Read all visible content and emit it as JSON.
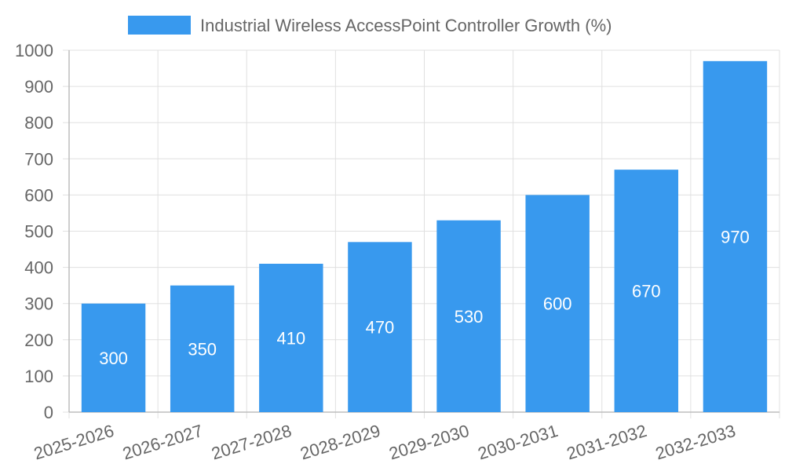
{
  "chart_data": {
    "type": "bar",
    "categories": [
      "2025-2026",
      "2026-2027",
      "2027-2028",
      "2028-2029",
      "2029-2030",
      "2030-2031",
      "2031-2032",
      "2032-2033"
    ],
    "series": [
      {
        "name": "Industrial Wireless AccessPoint Controller Growth (%)",
        "values": [
          300,
          350,
          410,
          470,
          530,
          600,
          670,
          970
        ],
        "color": "#3899ee"
      }
    ],
    "ylim": [
      0,
      1000
    ],
    "yticks": [
      0,
      100,
      200,
      300,
      400,
      500,
      600,
      700,
      800,
      900,
      1000
    ],
    "grid": true,
    "legend": "top-center",
    "data_labels": true
  }
}
